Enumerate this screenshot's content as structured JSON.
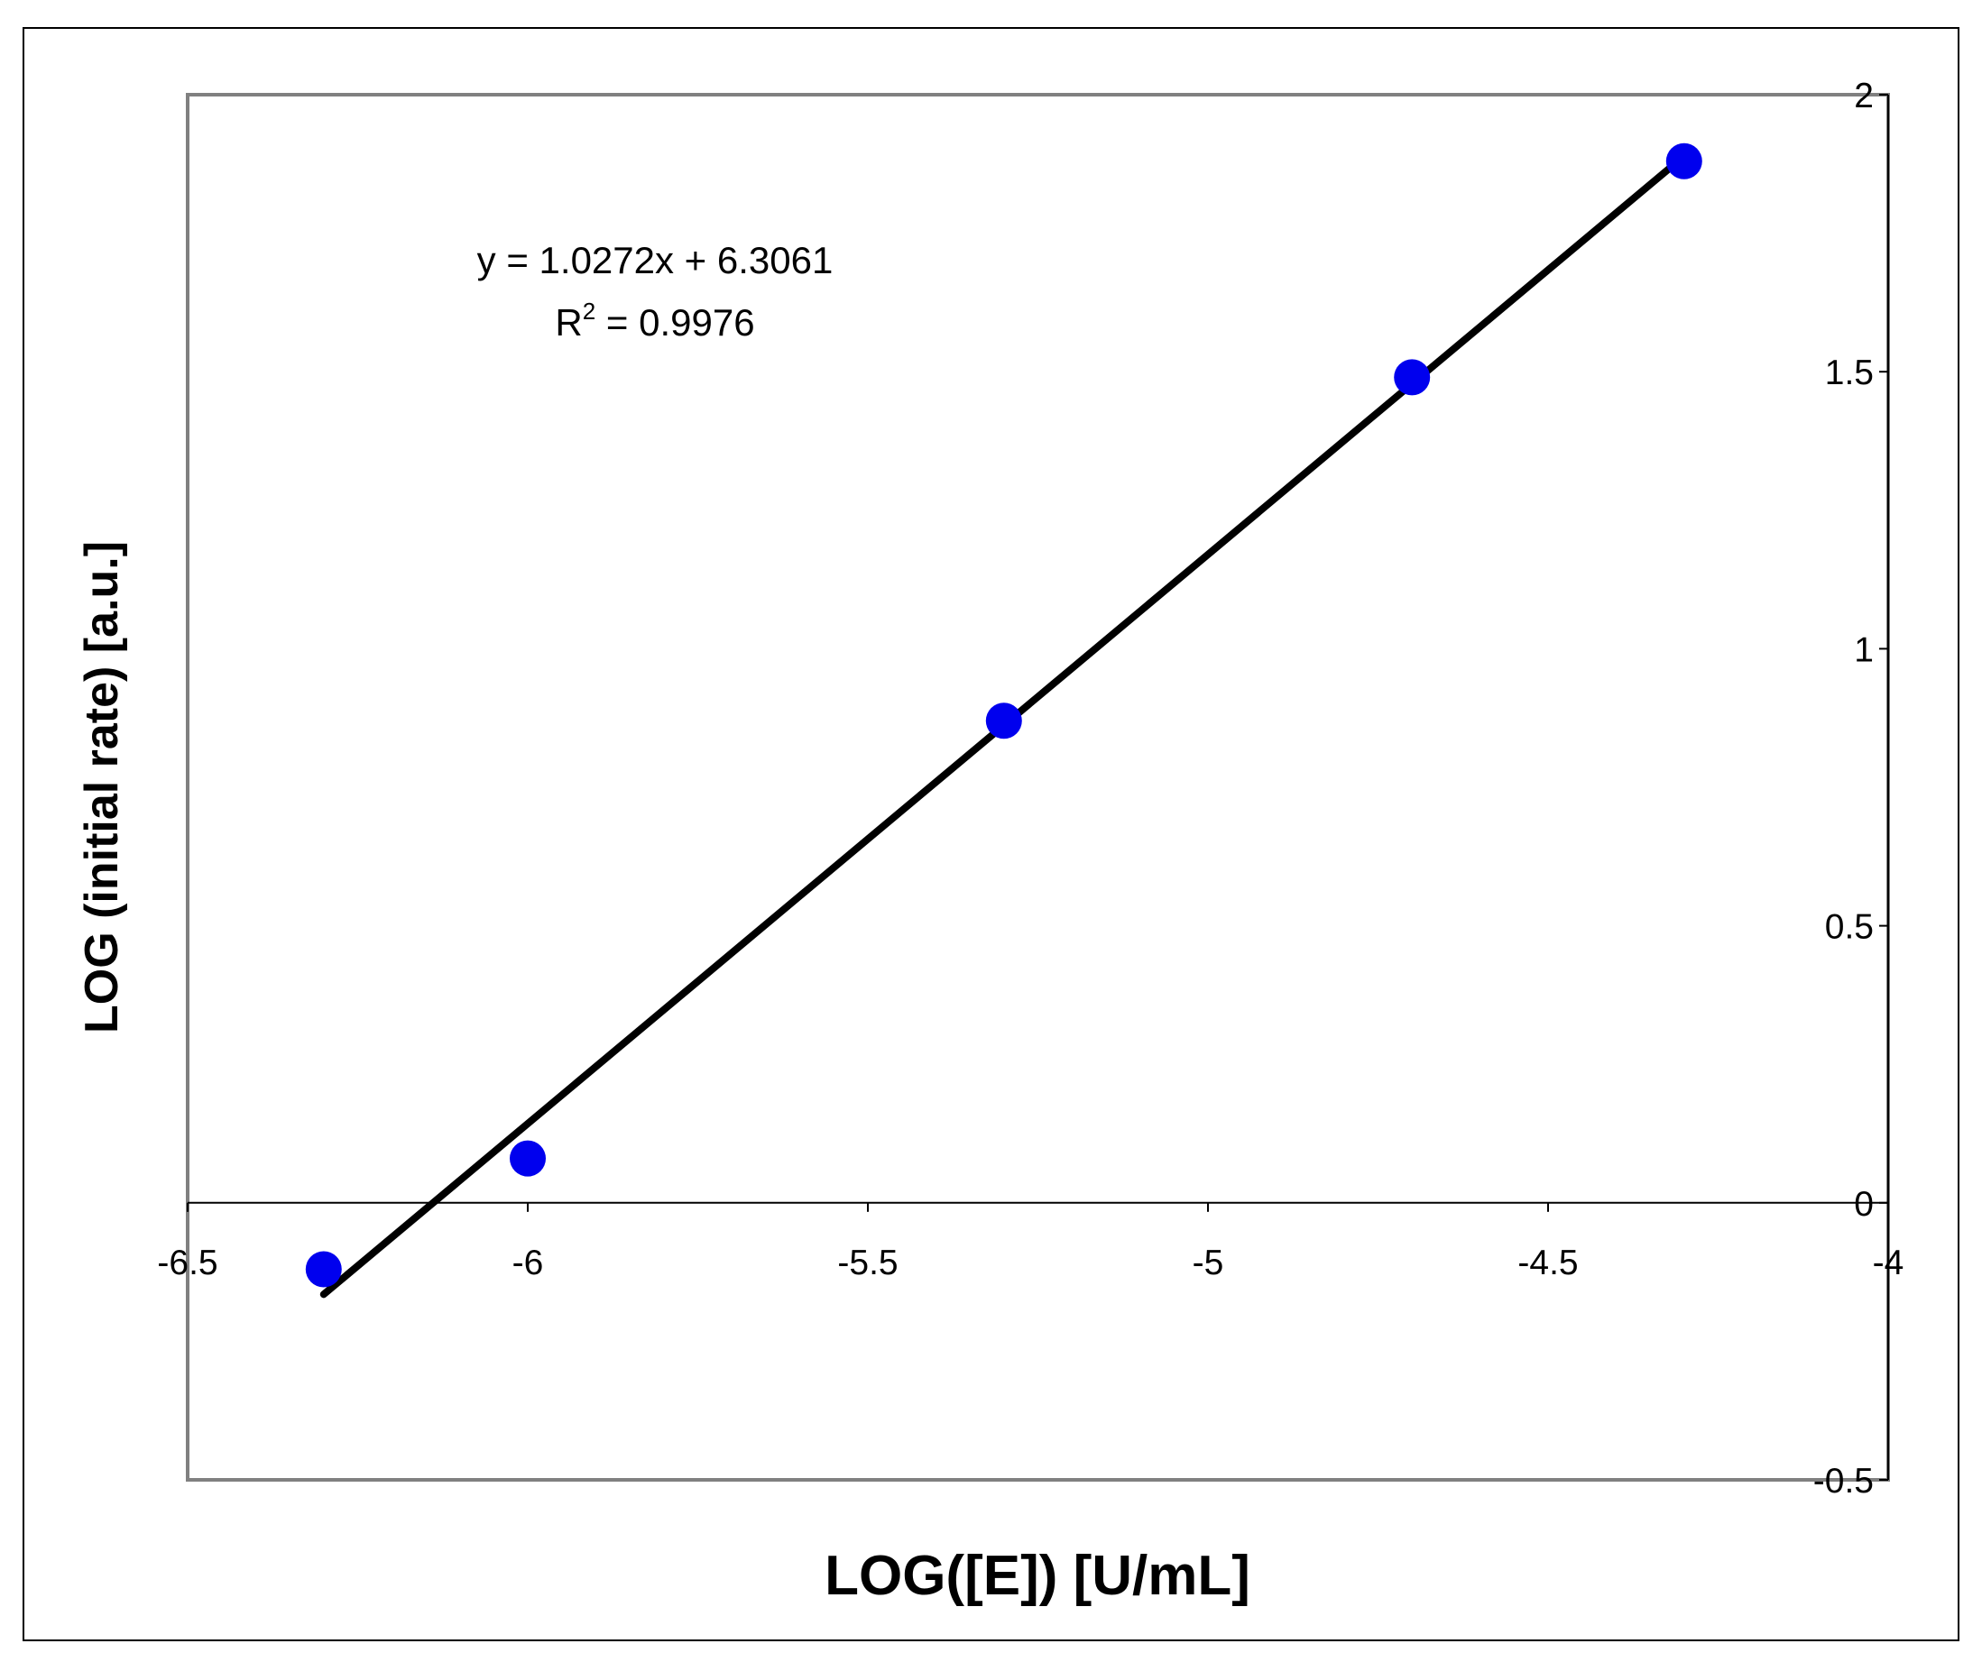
{
  "chart_data": {
    "type": "scatter",
    "xlabel": "LOG([E]) [U/mL]",
    "ylabel": "LOG (initial rate) [a.u.]",
    "xlim": [
      -6.5,
      -4
    ],
    "ylim": [
      -0.5,
      2
    ],
    "x_ticks": [
      -6.5,
      -6,
      -5.5,
      -5,
      -4.5,
      -4
    ],
    "y_ticks": [
      -0.5,
      0,
      0.5,
      1,
      1.5,
      2
    ],
    "x_tick_labels": [
      "-6.5",
      "-6",
      "-5.5",
      "-5",
      "-4.5",
      "-4"
    ],
    "y_tick_labels": [
      "-0.5",
      "0",
      "0.5",
      "1",
      "1.5",
      "2"
    ],
    "grid": false,
    "series": [
      {
        "color": "#0000ee",
        "x": [
          -6.3,
          -6.0,
          -5.3,
          -4.7,
          -4.3
        ],
        "y": [
          -0.12,
          0.08,
          0.87,
          1.49,
          1.88
        ]
      }
    ],
    "trendline": {
      "type": "linear",
      "slope": 1.0272,
      "intercept": 6.3061,
      "x_range": [
        -6.3,
        -4.3
      ],
      "color": "#000000",
      "equation_label": "y = 1.0272x + 6.3061",
      "r2_prefix": "R",
      "r2_superscript": "2",
      "r2_value": " = 0.9976"
    }
  }
}
